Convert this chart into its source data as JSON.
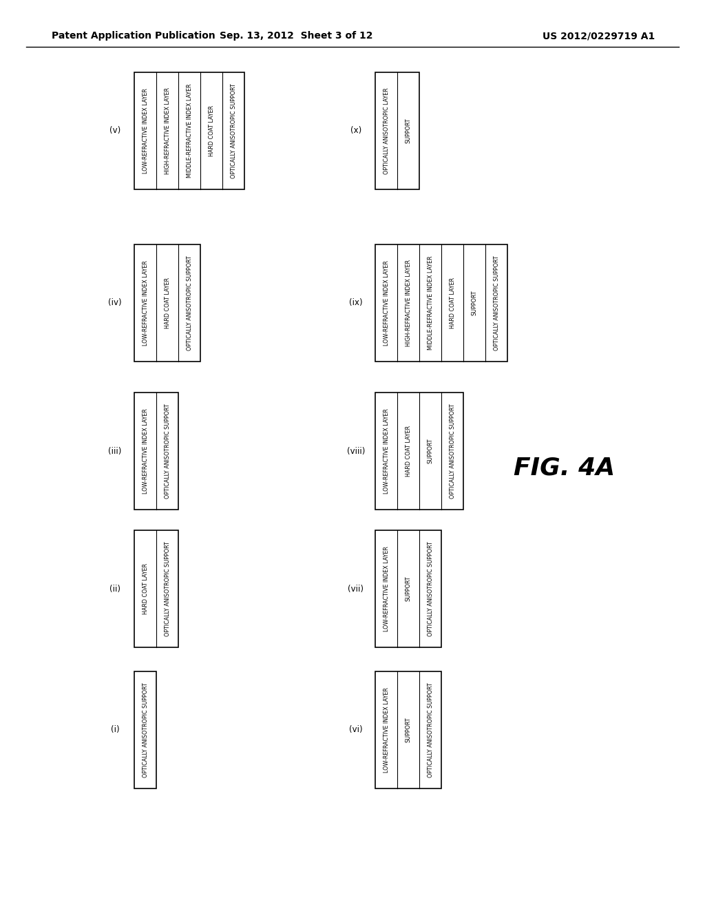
{
  "header_left": "Patent Application Publication",
  "header_mid": "Sep. 13, 2012  Sheet 3 of 12",
  "header_right": "US 2012/0229719 A1",
  "fig_label": "FIG. 4A",
  "diagrams": [
    {
      "label": "(i)",
      "layers": [
        "OPTICALLY ANISOTROPIC SUPPORT"
      ]
    },
    {
      "label": "(ii)",
      "layers": [
        "HARD COAT LAYER",
        "OPTICALLY ANISOTROPIC SUPPORT"
      ]
    },
    {
      "label": "(iii)",
      "layers": [
        "LOW-REFRACTIVE INDEX LAYER",
        "OPTICALLY ANISOTROPIC SUPPORT"
      ]
    },
    {
      "label": "(iv)",
      "layers": [
        "LOW-REFRACTIVE INDEX LAYER",
        "HARD COAT LAYER",
        "OPTICALLY ANISOTROPIC SUPPORT"
      ]
    },
    {
      "label": "(v)",
      "layers": [
        "LOW-REFRACTIVE INDEX LAYER",
        "HIGH-REFRACTIVE INDEX LAYER",
        "MIDDLE-REFRACTIVE INDEX LAYER",
        "HARD COAT LAYER",
        "OPTICALLY ANISOTROPIC SUPPORT"
      ]
    },
    {
      "label": "(vi)",
      "layers": [
        "LOW-REFRACTIVE INDEX LAYER",
        "SUPPORT",
        "OPTICALLY ANISOTROPIC SUPPORT"
      ]
    },
    {
      "label": "(vii)",
      "layers": [
        "LOW-REFRACTIVE INDEX LAYER",
        "SUPPORT",
        "OPTICALLY ANISOTROPIC SUPPORT"
      ]
    },
    {
      "label": "(viii)",
      "layers": [
        "LOW-REFRACTIVE INDEX LAYER",
        "HARD COAT LAYER",
        "SUPPORT",
        "OPTICALLY ANISOTROPIC SUPPORT"
      ]
    },
    {
      "label": "(ix)",
      "layers": [
        "LOW-REFRACTIVE INDEX LAYER",
        "HIGH-REFRACTIVE INDEX LAYER",
        "MIDDLE-REFRACTIVE INDEX LAYER",
        "HARD COAT LAYER",
        "SUPPORT",
        "OPTICALLY ANISOTROPIC SUPPORT"
      ]
    },
    {
      "label": "(x)",
      "layers": [
        "OPTICALLY ANISOTROPIC LAYER",
        "SUPPORT"
      ]
    }
  ],
  "bg_color": "#ffffff",
  "text_color": "#000000",
  "font_size": 5.8,
  "label_font_size": 8.5
}
